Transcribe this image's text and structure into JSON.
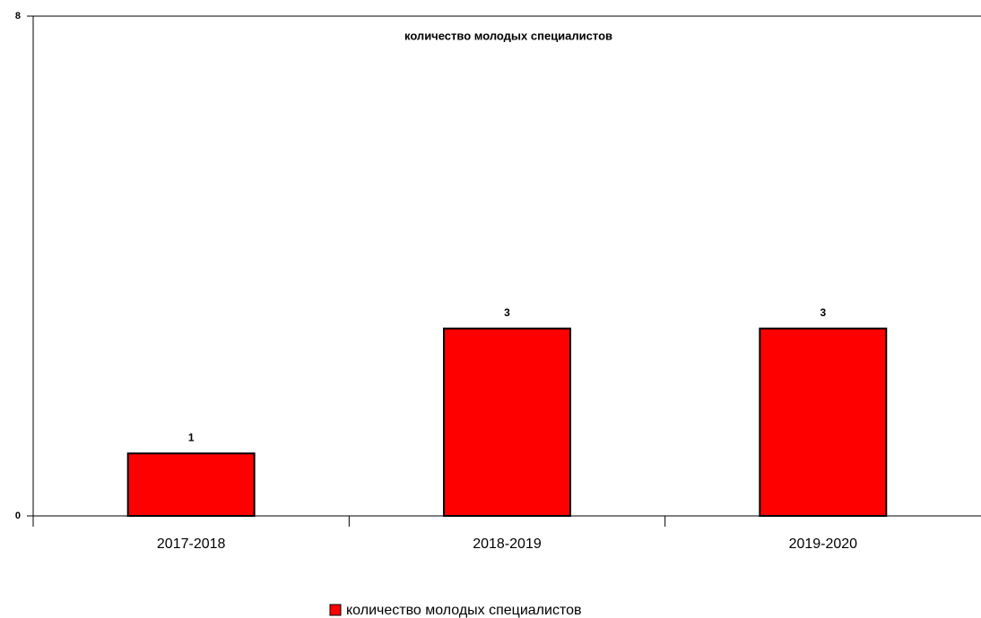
{
  "chart_data": {
    "type": "bar",
    "title": "количество молодых специалистов",
    "categories": [
      "2017-2018",
      "2018-2019",
      "2019-2020"
    ],
    "series": [
      {
        "name": "количество молодых специалистов",
        "color": "#ff0000",
        "values": [
          1,
          3,
          3
        ]
      }
    ],
    "ylim": [
      0,
      8
    ],
    "yticks": [
      0,
      8
    ],
    "grid": true,
    "legend": "bottom"
  }
}
